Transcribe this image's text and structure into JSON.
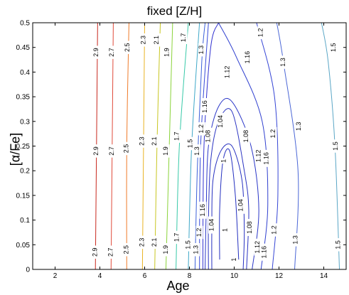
{
  "chart_data": {
    "type": "contour",
    "title": "fixed [Z/H]",
    "xlabel": "Age",
    "ylabel": "[α/Fe]",
    "xlim": [
      1,
      15
    ],
    "ylim": [
      0,
      0.5
    ],
    "xticks": [
      "2",
      "4",
      "6",
      "8",
      "10",
      "12",
      "14"
    ],
    "yticks": [
      "0",
      "0.05",
      "0.1",
      "0.15",
      "0.2",
      "0.25",
      "0.3",
      "0.35",
      "0.4",
      "0.45",
      "0.5"
    ],
    "grid": false,
    "contours": [
      {
        "level": "2.9",
        "color": "#c8281e",
        "points": [
          [
            3.8,
            0
          ],
          [
            3.85,
            0.25
          ],
          [
            3.9,
            0.5
          ]
        ],
        "labels": [
          [
            3.8,
            0.035
          ],
          [
            3.85,
            0.24
          ],
          [
            3.85,
            0.44
          ]
        ]
      },
      {
        "level": "2.7",
        "color": "#e04a3a",
        "points": [
          [
            4.5,
            0
          ],
          [
            4.55,
            0.25
          ],
          [
            4.6,
            0.5
          ]
        ],
        "labels": [
          [
            4.5,
            0.035
          ],
          [
            4.55,
            0.24
          ],
          [
            4.55,
            0.44
          ]
        ]
      },
      {
        "level": "2.5",
        "color": "#ef7b2a",
        "points": [
          [
            5.2,
            0
          ],
          [
            5.2,
            0.25
          ],
          [
            5.3,
            0.5
          ]
        ],
        "labels": [
          [
            5.2,
            0.04
          ],
          [
            5.2,
            0.245
          ],
          [
            5.25,
            0.45
          ]
        ]
      },
      {
        "level": "2.3",
        "color": "#e9b323",
        "points": [
          [
            5.9,
            0
          ],
          [
            5.95,
            0.25
          ],
          [
            6.0,
            0.5
          ]
        ],
        "labels": [
          [
            5.9,
            0.055
          ],
          [
            5.9,
            0.26
          ],
          [
            5.95,
            0.465
          ]
        ]
      },
      {
        "level": "2.1",
        "color": "#c8c621",
        "points": [
          [
            6.45,
            0
          ],
          [
            6.55,
            0.25
          ],
          [
            6.7,
            0.5
          ]
        ],
        "labels": [
          [
            6.45,
            0.055
          ],
          [
            6.45,
            0.26
          ],
          [
            6.55,
            0.465
          ]
        ]
      },
      {
        "level": "1.9",
        "color": "#8ad33a",
        "points": [
          [
            6.95,
            0
          ],
          [
            7.1,
            0.25
          ],
          [
            7.25,
            0.5
          ]
        ],
        "labels": [
          [
            6.95,
            0.04
          ],
          [
            6.95,
            0.24
          ],
          [
            7.0,
            0.44
          ]
        ]
      },
      {
        "level": "1.7",
        "color": "#37c9a8",
        "points": [
          [
            7.4,
            0
          ],
          [
            7.55,
            0.25
          ],
          [
            7.95,
            0.5
          ]
        ],
        "labels": [
          [
            7.45,
            0.065
          ],
          [
            7.45,
            0.27
          ],
          [
            7.75,
            0.47
          ]
        ]
      },
      {
        "level": "1.5",
        "color": "#3fa8c8",
        "points": [
          [
            7.95,
            0
          ],
          [
            8.1,
            0.25
          ],
          [
            8.45,
            0.5
          ]
        ],
        "labels": [
          [
            7.95,
            0.05
          ],
          [
            8.05,
            0.255
          ]
        ]
      },
      {
        "level": "1.3",
        "color": "#3b5fd9",
        "points": [
          [
            8.25,
            0
          ],
          [
            8.35,
            0.2
          ],
          [
            8.55,
            0.42
          ],
          [
            8.7,
            0.5
          ]
        ],
        "labels": [
          [
            8.3,
            0.04
          ],
          [
            8.35,
            0.24
          ],
          [
            8.55,
            0.445
          ]
        ]
      },
      {
        "level": "1.2",
        "color": "#3548d8",
        "points": [
          [
            8.45,
            0
          ],
          [
            8.5,
            0.25
          ],
          [
            8.85,
            0.5
          ]
        ],
        "labels": [
          [
            8.45,
            0.075
          ],
          [
            8.55,
            0.285
          ]
        ]
      },
      {
        "level": "1.16",
        "color": "#3030d0",
        "points": [
          [
            8.6,
            0
          ],
          [
            8.65,
            0.25
          ],
          [
            8.95,
            0.45
          ],
          [
            9.3,
            0.5
          ]
        ],
        "labels": [
          [
            8.6,
            0.12
          ],
          [
            8.7,
            0.33
          ]
        ]
      },
      {
        "level": "1.3",
        "color": "#4a66d6",
        "points": [
          [
            12.7,
            0
          ],
          [
            12.85,
            0.2
          ],
          [
            12.2,
            0.42
          ],
          [
            11.9,
            0.5
          ]
        ],
        "labels": [
          [
            12.75,
            0.06
          ],
          [
            12.9,
            0.29
          ],
          [
            12.2,
            0.42
          ]
        ]
      },
      {
        "level": "1.5",
        "color": "#5aa6c6",
        "points": [
          [
            14.7,
            0
          ],
          [
            14.5,
            0.25
          ],
          [
            14.2,
            0.42
          ],
          [
            13.9,
            0.5
          ]
        ],
        "labels": [
          [
            14.65,
            0.05
          ],
          [
            14.55,
            0.25
          ],
          [
            14.45,
            0.45
          ]
        ]
      },
      {
        "level": "1.2",
        "color": "#3545d5",
        "points": [
          [
            11.7,
            0
          ],
          [
            11.95,
            0.15
          ],
          [
            11.8,
            0.35
          ],
          [
            11.0,
            0.5
          ]
        ],
        "labels": [
          [
            11.8,
            0.08
          ],
          [
            11.75,
            0.275
          ],
          [
            11.2,
            0.48
          ]
        ]
      },
      {
        "level": "1.16",
        "color": "#2f3fcf",
        "points": [
          [
            11.2,
            0
          ],
          [
            11.5,
            0.13
          ],
          [
            11.25,
            0.3
          ],
          [
            10.1,
            0.43
          ],
          [
            9.3,
            0.5
          ]
        ],
        "labels": [
          [
            11.35,
            0.035
          ],
          [
            11.45,
            0.225
          ],
          [
            10.6,
            0.43
          ]
        ]
      },
      {
        "level": "1.12",
        "color": "#2a36c8",
        "points": [
          [
            10.8,
            0
          ],
          [
            11.1,
            0.12
          ],
          [
            10.75,
            0.25
          ],
          [
            9.9,
            0.34
          ],
          [
            9.3,
            0.33
          ],
          [
            8.85,
            0.25
          ],
          [
            8.75,
            0.12
          ],
          [
            8.7,
            0
          ]
        ],
        "labels": [
          [
            11.05,
            0.045
          ],
          [
            11.1,
            0.23
          ],
          [
            9.7,
            0.4
          ]
        ]
      },
      {
        "level": "1.08",
        "color": "#2a33c2",
        "points": [
          [
            10.55,
            0
          ],
          [
            10.65,
            0.12
          ],
          [
            10.45,
            0.2
          ],
          [
            9.9,
            0.32
          ],
          [
            9.3,
            0.3
          ],
          [
            8.95,
            0.22
          ],
          [
            8.85,
            0.1
          ],
          [
            8.85,
            0
          ]
        ],
        "labels": [
          [
            10.7,
            0.085
          ],
          [
            10.55,
            0.27
          ],
          [
            8.85,
            0.27
          ]
        ]
      },
      {
        "level": "1.04",
        "color": "#2630c0",
        "points": [
          [
            10.4,
            0
          ],
          [
            10.45,
            0.08
          ],
          [
            10.35,
            0.18
          ],
          [
            9.9,
            0.25
          ],
          [
            9.4,
            0.24
          ],
          [
            9.05,
            0.18
          ],
          [
            9.0,
            0.08
          ],
          [
            9.0,
            0
          ]
        ],
        "labels": [
          [
            10.3,
            0.13
          ],
          [
            9.0,
            0.09
          ],
          [
            9.4,
            0.3
          ]
        ]
      },
      {
        "level": "1",
        "color": "#2430c0",
        "points": [
          [
            10.2,
            0.02
          ],
          [
            10.05,
            0.15
          ],
          [
            9.8,
            0.24
          ],
          [
            9.5,
            0.22
          ],
          [
            9.35,
            0.12
          ],
          [
            9.35,
            0.02
          ]
        ],
        "labels": [
          [
            9.55,
            0.22
          ],
          [
            9.6,
            0.08
          ],
          [
            10.0,
            0.02
          ]
        ]
      }
    ]
  }
}
